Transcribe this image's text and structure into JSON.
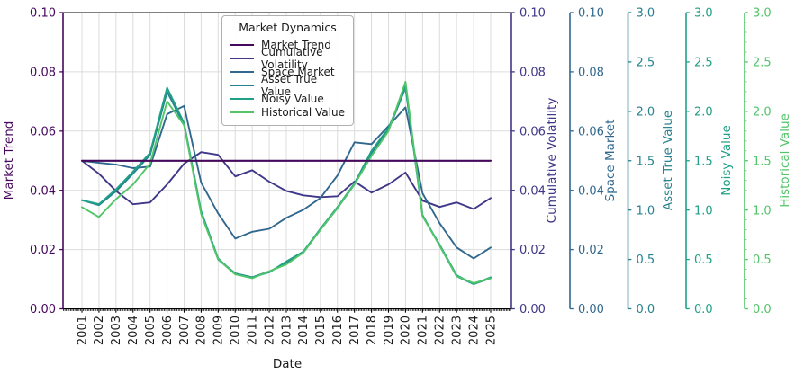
{
  "chart_data": {
    "type": "line",
    "x_label": "Date",
    "x": [
      2001,
      2002,
      2003,
      2004,
      2005,
      2006,
      2007,
      2008,
      2009,
      2010,
      2011,
      2012,
      2013,
      2014,
      2015,
      2016,
      2017,
      2018,
      2019,
      2020,
      2021,
      2022,
      2023,
      2024,
      2025
    ],
    "grid": true,
    "legend": {
      "title": "Market Dynamics",
      "position": "upper left-center"
    },
    "axes": [
      {
        "id": "market_trend",
        "label": "Market Trend",
        "side": "left",
        "color": "#46085C",
        "range": [
          0,
          0.1
        ],
        "tick_step": 0.02,
        "decimals": 2
      },
      {
        "id": "cumulative_volatility",
        "label": "Cumulative Volatility",
        "side": "right",
        "color": "#3F3788",
        "range": [
          0,
          0.1
        ],
        "tick_step": 0.02,
        "decimals": 2
      },
      {
        "id": "space_market",
        "label": "Space Market",
        "side": "right-detached",
        "color": "#31688E",
        "range": [
          0,
          0.1
        ],
        "tick_step": 0.02,
        "decimals": 2
      },
      {
        "id": "asset_true_value",
        "label": "Asset True Value",
        "side": "right-detached",
        "color": "#26828E",
        "range": [
          0,
          3.0
        ],
        "tick_step": 0.5,
        "decimals": 1
      },
      {
        "id": "noisy_value",
        "label": "Noisy Value",
        "side": "right-detached",
        "color": "#1FA187",
        "range": [
          0,
          3.0
        ],
        "tick_step": 0.5,
        "decimals": 1
      },
      {
        "id": "historical_value",
        "label": "Historical Value",
        "side": "right-detached",
        "color": "#52C569",
        "range": [
          0,
          3.0
        ],
        "tick_step": 0.5,
        "minor_tick_step": 0.1,
        "decimals": 1
      }
    ],
    "series": [
      {
        "name": "Market Trend",
        "axis": "market_trend",
        "color": "#46085C",
        "values": [
          0.05,
          0.05,
          0.05,
          0.05,
          0.05,
          0.05,
          0.05,
          0.05,
          0.05,
          0.05,
          0.05,
          0.05,
          0.05,
          0.05,
          0.05,
          0.05,
          0.05,
          0.05,
          0.05,
          0.05,
          0.05,
          0.05,
          0.05,
          0.05,
          0.05
        ]
      },
      {
        "name": "Cumulative Volatility",
        "axis": "cumulative_volatility",
        "color": "#3F3788",
        "values": [
          0.05,
          0.0456,
          0.0398,
          0.0353,
          0.0359,
          0.042,
          0.049,
          0.0529,
          0.052,
          0.0447,
          0.0468,
          0.0429,
          0.0398,
          0.0383,
          0.0377,
          0.038,
          0.043,
          0.0392,
          0.042,
          0.046,
          0.0365,
          0.0344,
          0.0359,
          0.0337,
          0.0374
        ]
      },
      {
        "name": "Space Market",
        "axis": "space_market",
        "color": "#31688E",
        "values": [
          0.05,
          0.0493,
          0.0487,
          0.0475,
          0.048,
          0.0657,
          0.0685,
          0.0426,
          0.0322,
          0.0237,
          0.026,
          0.027,
          0.0307,
          0.0334,
          0.0374,
          0.045,
          0.0562,
          0.0556,
          0.0617,
          0.068,
          0.039,
          0.0289,
          0.0207,
          0.017,
          0.0207
        ]
      },
      {
        "name": "Asset True Value",
        "axis": "asset_true_value",
        "color": "#26828E",
        "values": [
          1.1,
          1.05,
          1.19,
          1.37,
          1.56,
          2.2,
          1.86,
          0.98,
          0.5,
          0.36,
          0.32,
          0.38,
          0.46,
          0.57,
          0.8,
          1.02,
          1.26,
          1.58,
          1.81,
          2.24,
          0.95,
          0.64,
          0.33,
          0.25,
          0.31
        ]
      },
      {
        "name": "Noisy Value",
        "axis": "noisy_value",
        "color": "#1FA187",
        "values": [
          1.1,
          1.06,
          1.21,
          1.39,
          1.58,
          2.24,
          1.88,
          0.99,
          0.51,
          0.35,
          0.32,
          0.37,
          0.48,
          0.58,
          0.81,
          1.03,
          1.27,
          1.6,
          1.83,
          2.25,
          0.94,
          0.65,
          0.34,
          0.25,
          0.32
        ]
      },
      {
        "name": "Historical Value",
        "axis": "historical_value",
        "color": "#52C569",
        "values": [
          1.03,
          0.93,
          1.11,
          1.26,
          1.47,
          2.1,
          1.86,
          0.96,
          0.5,
          0.35,
          0.31,
          0.38,
          0.45,
          0.57,
          0.8,
          1.02,
          1.26,
          1.55,
          1.8,
          2.3,
          0.94,
          0.64,
          0.33,
          0.26,
          0.31
        ]
      }
    ]
  }
}
